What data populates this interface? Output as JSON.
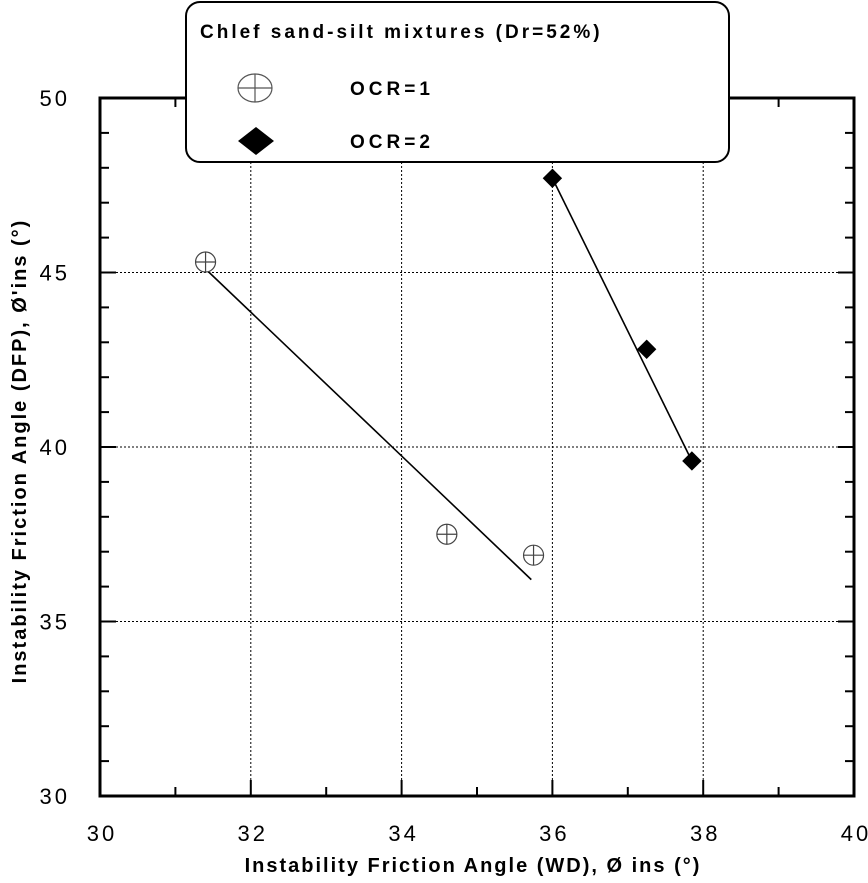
{
  "chart_data": {
    "type": "scatter",
    "xlabel": "Instability Friction Angle (WD),  Ø ins (°)",
    "ylabel": "Instability Friction Angle (DFP),  Ø'ins (°)",
    "xlim": [
      30,
      40
    ],
    "ylim": [
      30,
      50
    ],
    "xticks": [
      "30",
      "32",
      "34",
      "36",
      "38",
      "40"
    ],
    "yticks": [
      "30",
      "35",
      "40",
      "45",
      "50"
    ],
    "grid": true,
    "legend": {
      "title": "Chlef sand-silt mixtures (Dr=52%)",
      "placement": "top-center"
    },
    "series": [
      {
        "name": "OCR=1",
        "marker": "circle-plus",
        "color": "#000000",
        "points": [
          [
            31.4,
            45.3
          ],
          [
            34.6,
            37.5
          ],
          [
            35.75,
            36.9
          ]
        ],
        "trendline": [
          [
            31.4,
            45.1
          ],
          [
            35.72,
            36.2
          ]
        ]
      },
      {
        "name": "OCR=2",
        "marker": "diamond",
        "color": "#000000",
        "points": [
          [
            36.0,
            47.7
          ],
          [
            37.25,
            42.8
          ],
          [
            37.85,
            39.6
          ]
        ],
        "trendline": [
          [
            36.0,
            47.7
          ],
          [
            37.85,
            39.6
          ]
        ]
      }
    ]
  }
}
